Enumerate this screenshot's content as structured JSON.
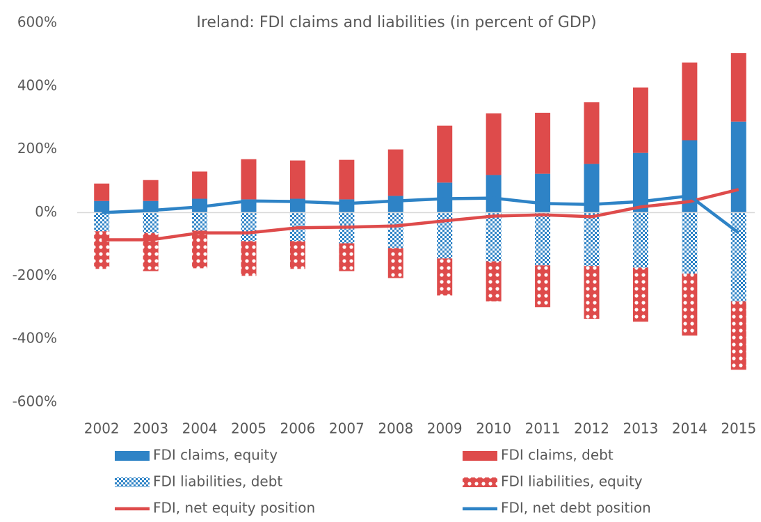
{
  "chart_data": {
    "type": "bar",
    "stacked": true,
    "title": "Ireland: FDI claims and liabilities (in percent of GDP)",
    "categories": [
      "2002",
      "2003",
      "2004",
      "2005",
      "2006",
      "2007",
      "2008",
      "2009",
      "2010",
      "2011",
      "2012",
      "2013",
      "2014",
      "2015"
    ],
    "ylim": [
      -600,
      600
    ],
    "yticks": [
      {
        "value": 600,
        "label": "600%"
      },
      {
        "value": 400,
        "label": "400%"
      },
      {
        "value": 200,
        "label": "200%"
      },
      {
        "value": 0,
        "label": "0%"
      },
      {
        "value": -200,
        "label": "-200%"
      },
      {
        "value": -400,
        "label": "-400%"
      },
      {
        "value": -600,
        "label": "-600%"
      }
    ],
    "grid": false,
    "legend": "bottom",
    "series": [
      {
        "name": "FDI claims, equity",
        "type": "bar",
        "color": "#2e83c6",
        "values": [
          37,
          37,
          44,
          42,
          44,
          42,
          53,
          95,
          119,
          123,
          154,
          189,
          229,
          288
        ]
      },
      {
        "name": "FDI claims, debt",
        "type": "bar",
        "color": "#de4b4b",
        "values": [
          55,
          66,
          86,
          127,
          121,
          125,
          147,
          180,
          195,
          193,
          195,
          207,
          246,
          217
        ]
      },
      {
        "name": "FDI liabilities, debt",
        "type": "bar",
        "color": "#2e83c6",
        "pattern": "checker",
        "values": [
          -59,
          -64,
          -57,
          -90,
          -90,
          -97,
          -112,
          -145,
          -154,
          -167,
          -169,
          -174,
          -193,
          -281
        ]
      },
      {
        "name": "FDI liabilities, equity",
        "type": "bar",
        "color": "#de4b4b",
        "pattern": "circles",
        "values": [
          -119,
          -121,
          -119,
          -110,
          -88,
          -88,
          -95,
          -117,
          -127,
          -132,
          -167,
          -171,
          -196,
          -216
        ]
      },
      {
        "name": "FDI, net equity position",
        "type": "line",
        "color": "#de4b4b",
        "values": [
          -86,
          -86,
          -64,
          -64,
          -48,
          -46,
          -42,
          -26,
          -11,
          -7,
          -13,
          18,
          35,
          73
        ]
      },
      {
        "name": "FDI, net debt position",
        "type": "line",
        "color": "#2e83c6",
        "values": [
          0,
          7,
          18,
          37,
          35,
          29,
          37,
          44,
          46,
          29,
          26,
          35,
          53,
          -64
        ]
      }
    ]
  }
}
